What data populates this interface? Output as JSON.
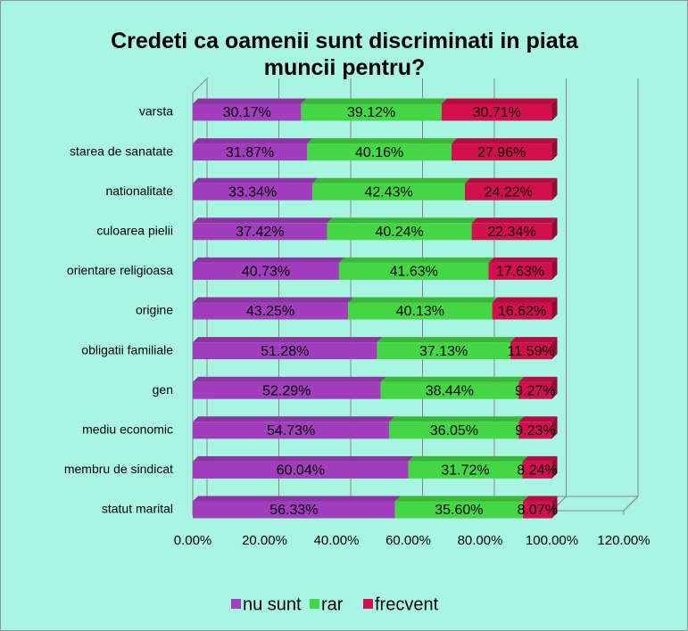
{
  "chart_data": {
    "type": "stacked_barh",
    "title": "Credeti ca oamenii sunt discriminati in piata muncii pentru?",
    "categories": [
      "varsta",
      "starea de sanatate",
      "nationalitate",
      "culoarea pielii",
      "orientare religioasa",
      "origine",
      "obligatii familiale",
      "gen",
      "mediu economic",
      "membru de sindicat",
      "statut marital"
    ],
    "series": [
      {
        "name": "nu sunt",
        "color": "#a23ebd",
        "values": [
          30.17,
          31.87,
          33.34,
          37.42,
          40.73,
          43.25,
          51.28,
          52.29,
          54.73,
          60.04,
          56.33
        ],
        "value_labels": [
          "30.17%",
          "31.87%",
          "33.34%",
          "37.42%",
          "40.73%",
          "43.25%",
          "51.28%",
          "52.29%",
          "54.73%",
          "60.04%",
          "56.33%"
        ]
      },
      {
        "name": "rar",
        "color": "#45d645",
        "values": [
          39.12,
          40.16,
          42.43,
          40.24,
          41.63,
          40.13,
          37.13,
          38.44,
          36.05,
          31.72,
          35.6
        ],
        "value_labels": [
          "39.12%",
          "40.16%",
          "42.43%",
          "40.24%",
          "41.63%",
          "40.13%",
          "37.13%",
          "38.44%",
          "36.05%",
          "31.72%",
          "35.60%"
        ]
      },
      {
        "name": "frecvent",
        "color": "#d3104f",
        "values": [
          30.71,
          27.96,
          24.22,
          22.34,
          17.63,
          16.62,
          11.59,
          9.27,
          9.23,
          8.24,
          8.07
        ],
        "value_labels": [
          "30.71%",
          "27.96%",
          "24.22%",
          "22.34%",
          "17.63%",
          "16.62%",
          "11.59%",
          "9.27%",
          "9.23%",
          "8.24%",
          "8.07%"
        ]
      }
    ],
    "xlim": [
      0,
      120
    ],
    "xticks": [
      {
        "value": 0,
        "label": "0.00%"
      },
      {
        "value": 20,
        "label": "20.00%"
      },
      {
        "value": 40,
        "label": "40.00%"
      },
      {
        "value": 60,
        "label": "60.00%"
      },
      {
        "value": 80,
        "label": "80.00%"
      },
      {
        "value": 100,
        "label": "100.00%"
      },
      {
        "value": 120,
        "label": "120.00%"
      }
    ],
    "grid": true,
    "legend": "bottom"
  }
}
